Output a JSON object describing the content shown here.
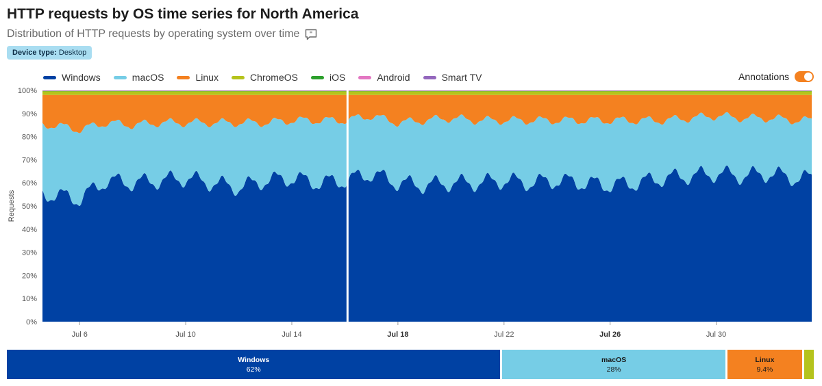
{
  "title": "HTTP requests by OS time series for North America",
  "subtitle": "Distribution of HTTP requests by operating system over time",
  "badge": {
    "key": "Device type:",
    "value": "Desktop"
  },
  "annotations_label": "Annotations",
  "annotations_on": true,
  "colors": {
    "Windows": "#0041a3",
    "macOS": "#76cde6",
    "Linux": "#f48120",
    "ChromeOS": "#b5c31c",
    "iOS": "#2ca02c",
    "Android": "#e377c2",
    "Smart TV": "#9467bd",
    "annotation_line": "#ffffff"
  },
  "chart_data": {
    "type": "area",
    "stacked": true,
    "normalized": true,
    "title": "HTTP requests by OS time series for North America",
    "ylabel": "Requests",
    "ylim": [
      0,
      100
    ],
    "y_ticks": [
      "0%",
      "10%",
      "20%",
      "30%",
      "40%",
      "50%",
      "60%",
      "70%",
      "80%",
      "90%",
      "100%"
    ],
    "x_ticks": [
      {
        "day": 6,
        "label": "Jul 6",
        "bold": false
      },
      {
        "day": 10,
        "label": "Jul 10",
        "bold": false
      },
      {
        "day": 14,
        "label": "Jul 14",
        "bold": false
      },
      {
        "day": 18,
        "label": "Jul 18",
        "bold": true
      },
      {
        "day": 22,
        "label": "Jul 22",
        "bold": false
      },
      {
        "day": 26,
        "label": "Jul 26",
        "bold": true
      },
      {
        "day": 30,
        "label": "Jul 30",
        "bold": false
      }
    ],
    "x_start_day": 4.6,
    "x_end_day": 33.6,
    "annotation_day": 16.1,
    "x_days": [
      5,
      6,
      7,
      8,
      9,
      10,
      11,
      12,
      13,
      14,
      15,
      16,
      17,
      18,
      19,
      20,
      21,
      22,
      23,
      24,
      25,
      26,
      27,
      28,
      29,
      30,
      31,
      32,
      33
    ],
    "series": [
      {
        "name": "Windows",
        "values": [
          55,
          53,
          61,
          60,
          61,
          62,
          60,
          58,
          61,
          62,
          60,
          61,
          64,
          60,
          59,
          60,
          60,
          61,
          60,
          61,
          60,
          59,
          60,
          62,
          63,
          64,
          63,
          64,
          62
        ]
      },
      {
        "name": "macOS",
        "values": [
          30,
          30,
          25,
          25,
          25,
          24,
          26,
          28,
          25,
          25,
          27,
          26,
          25,
          26,
          28,
          28,
          27,
          26,
          27,
          26,
          27,
          28,
          27,
          25,
          25,
          25,
          25,
          24,
          25
        ]
      },
      {
        "name": "Linux",
        "values": [
          13,
          15,
          12,
          13,
          12,
          12,
          12,
          12,
          12,
          11,
          11,
          11,
          9,
          12,
          11,
          10,
          11,
          11,
          11,
          11,
          11,
          11,
          11,
          11,
          10,
          9,
          10,
          10,
          11
        ]
      },
      {
        "name": "ChromeOS",
        "values": [
          1.6,
          1.6,
          1.6,
          1.6,
          1.6,
          1.6,
          1.6,
          1.6,
          1.6,
          1.6,
          1.6,
          1.6,
          1.6,
          1.6,
          1.6,
          1.6,
          1.6,
          1.6,
          1.6,
          1.6,
          1.6,
          1.6,
          1.6,
          1.6,
          1.6,
          1.6,
          1.6,
          1.6,
          1.6
        ]
      },
      {
        "name": "iOS",
        "values": [
          0.2,
          0.2,
          0.2,
          0.2,
          0.2,
          0.2,
          0.2,
          0.2,
          0.2,
          0.2,
          0.2,
          0.2,
          0.2,
          0.2,
          0.2,
          0.2,
          0.2,
          0.2,
          0.2,
          0.2,
          0.2,
          0.2,
          0.2,
          0.2,
          0.2,
          0.2,
          0.2,
          0.2,
          0.2
        ]
      },
      {
        "name": "Android",
        "values": [
          0.1,
          0.1,
          0.1,
          0.1,
          0.1,
          0.1,
          0.1,
          0.1,
          0.1,
          0.1,
          0.1,
          0.1,
          0.1,
          0.1,
          0.1,
          0.1,
          0.1,
          0.1,
          0.1,
          0.1,
          0.1,
          0.1,
          0.1,
          0.1,
          0.1,
          0.1,
          0.1,
          0.1,
          0.1
        ]
      },
      {
        "name": "Smart TV",
        "values": [
          0.1,
          0.1,
          0.1,
          0.1,
          0.1,
          0.1,
          0.1,
          0.1,
          0.1,
          0.1,
          0.1,
          0.1,
          0.1,
          0.1,
          0.1,
          0.1,
          0.1,
          0.1,
          0.1,
          0.1,
          0.1,
          0.1,
          0.1,
          0.1,
          0.1,
          0.1,
          0.1,
          0.1,
          0.1
        ]
      }
    ],
    "summary": [
      {
        "name": "Windows",
        "label": "62%",
        "share": 62.0
      },
      {
        "name": "macOS",
        "label": "28%",
        "share": 28.0
      },
      {
        "name": "Linux",
        "label": "9.4%",
        "share": 9.4
      },
      {
        "name": "ChromeOS",
        "label": "",
        "share": 1.2
      }
    ]
  }
}
